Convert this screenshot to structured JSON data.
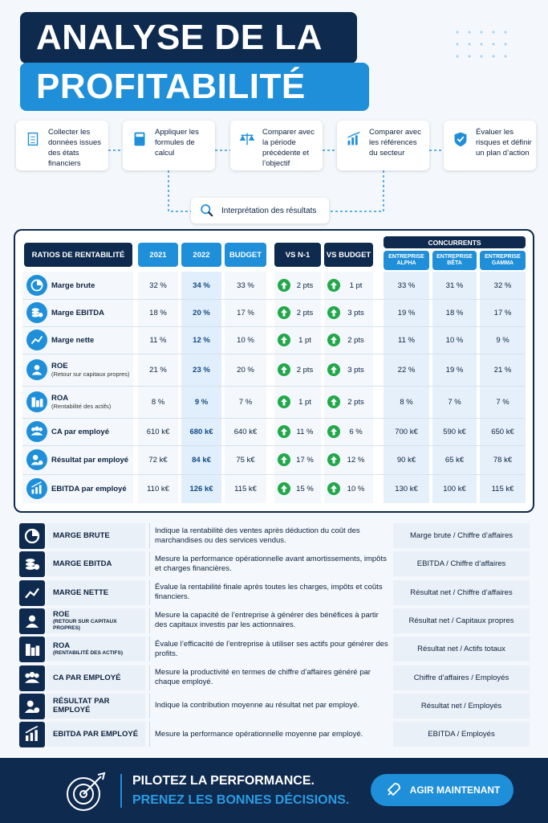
{
  "header": {
    "title_line1": "ANALYSE DE LA",
    "title_line2": "PROFITABILITÉ"
  },
  "steps": [
    "Collecter les données issues des états financiers",
    "Appliquer les formules de calcul",
    "Comparer avec la période précédente et l’objectif",
    "Comparer avec les références du secteur",
    "Évaluer les risques et définir un plan d’action"
  ],
  "interpretation": "Interprétation des résultats",
  "table": {
    "headers": {
      "ratios": "RATIOS DE RENTABILITÉ",
      "y2021": "2021",
      "y2022": "2022",
      "budget": "BUDGET",
      "vs_n1": "VS N-1",
      "vs_budget": "VS BUDGET",
      "competitors": "CONCURRENTS",
      "alpha": "ENTREPRISE ALPHA",
      "beta": "ENTREPRISE BÊTA",
      "gamma": "ENTREPRISE GAMMA"
    },
    "rows": [
      {
        "name": "Marge brute",
        "values": [
          "32 %",
          "34 %",
          "33 %",
          "2 pts",
          "1 pt",
          "33 %",
          "31 %",
          "32 %"
        ]
      },
      {
        "name": "Marge EBITDA",
        "values": [
          "18 %",
          "20 %",
          "17 %",
          "2 pts",
          "3 pts",
          "19 %",
          "18 %",
          "17 %"
        ]
      },
      {
        "name": "Marge nette",
        "values": [
          "11 %",
          "12 %",
          "10 %",
          "1 pt",
          "2 pts",
          "11 %",
          "10 %",
          "9 %"
        ]
      },
      {
        "name": "ROE",
        "sub": "(Retour sur capitaux propres)",
        "values": [
          "21 %",
          "23 %",
          "20 %",
          "2 pts",
          "3 pts",
          "22 %",
          "19 %",
          "21 %"
        ]
      },
      {
        "name": "ROA",
        "sub": "(Rentabilité des actifs)",
        "values": [
          "8 %",
          "9 %",
          "7 %",
          "1 pt",
          "2 pts",
          "8 %",
          "7 %",
          "7 %"
        ]
      },
      {
        "name": "CA par employé",
        "values": [
          "610 k€",
          "680 k€",
          "640 k€",
          "11 %",
          "6 %",
          "700 k€",
          "590 k€",
          "650 k€"
        ]
      },
      {
        "name": "Résultat par employé",
        "values": [
          "72 k€",
          "84 k€",
          "75 k€",
          "17 %",
          "12 %",
          "90 k€",
          "65 k€",
          "78 k€"
        ]
      },
      {
        "name": "EBITDA par employé",
        "values": [
          "110 k€",
          "126 k€",
          "115 k€",
          "15 %",
          "10 %",
          "130 k€",
          "100 k€",
          "115 k€"
        ]
      }
    ]
  },
  "definitions": [
    {
      "name": "MARGE BRUTE",
      "description": "Indique la rentabilité des ventes après déduction du coût des marchandises ou des services vendus.",
      "formula": "Marge brute / Chiffre d’affaires"
    },
    {
      "name": "MARGE EBITDA",
      "description": "Mesure la performance opérationnelle avant amortissements, impôts et charges financières.",
      "formula": "EBITDA / Chiffre d’affaires"
    },
    {
      "name": "MARGE NETTE",
      "description": "Évalue la rentabilité finale après toutes les charges, impôts et coûts financiers.",
      "formula": "Résultat net / Chiffre d’affaires"
    },
    {
      "name": "ROE",
      "sub": "(RETOUR SUR CAPITAUX PROPRES)",
      "description": "Mesure la capacité de l’entreprise à générer des bénéfices à partir des capitaux investis par les actionnaires.",
      "formula": "Résultat net / Capitaux propres"
    },
    {
      "name": "ROA",
      "sub": "(RENTABILITÉ DES ACTIFS)",
      "description": "Évalue l’efficacité de l’entreprise à utiliser ses actifs pour générer des profits.",
      "formula": "Résultat net / Actifs totaux"
    },
    {
      "name": "CA PAR EMPLOYÉ",
      "description": "Mesure la productivité en termes de chiffre d’affaires généré par chaque employé.",
      "formula": "Chiffre d’affaires / Employés"
    },
    {
      "name": "RÉSULTAT PAR EMPLOYÉ",
      "description": "Indique la contribution moyenne au résultat net par employé.",
      "formula": "Résultat net / Employés"
    },
    {
      "name": "EBITDA PAR EMPLOYÉ",
      "description": "Mesure la performance opérationnelle moyenne par employé.",
      "formula": "EBITDA / Employés"
    }
  ],
  "footer": {
    "line1": "PILOTEZ LA PERFORMANCE.",
    "line2": "PRENEZ LES BONNES DÉCISIONS.",
    "button": "AGIR MAINTENANT"
  }
}
